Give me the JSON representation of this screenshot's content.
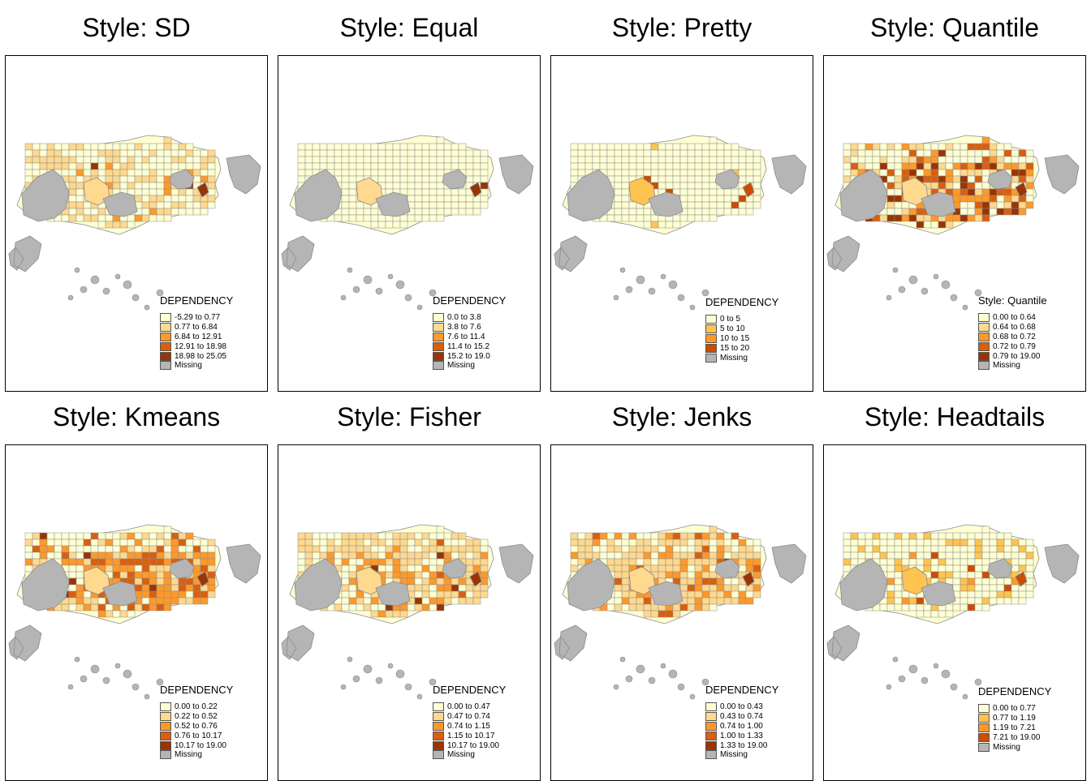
{
  "colors": {
    "missing": "#b5b5b5",
    "boundary": "#8c8c8c",
    "scale5": [
      "#ffffd4",
      "#fed98e",
      "#fe9929",
      "#d95f0e",
      "#993404"
    ],
    "scale4": [
      "#ffffd4",
      "#fec44f",
      "#fe9929",
      "#cc4c02"
    ]
  },
  "panels": [
    {
      "title": "Style: SD",
      "legend_title": "DEPENDENCY",
      "classes": [
        "-5.29 to 0.77",
        "0.77 to 6.84",
        "6.84 to 12.91",
        "12.91 to 18.98",
        "18.98 to 25.05"
      ],
      "missing_label": "Missing",
      "fill_mix": [
        0.5,
        0.42,
        0.06,
        0.0,
        0.02
      ]
    },
    {
      "title": "Style: Equal",
      "legend_title": "DEPENDENCY",
      "classes": [
        "0.0 to 3.8",
        "3.8 to 7.6",
        "7.6 to 11.4",
        "11.4 to 15.2",
        "15.2 to 19.0"
      ],
      "missing_label": "Missing",
      "fill_mix": [
        0.97,
        0.01,
        0.0,
        0.0,
        0.02
      ]
    },
    {
      "title": "Style: Pretty",
      "legend_title": "DEPENDENCY",
      "classes": [
        "0 to 5",
        "5 to 10",
        "10 to 15",
        "15 to 20"
      ],
      "missing_label": "Missing",
      "fill_mix": [
        0.97,
        0.01,
        0.0,
        0.02
      ]
    },
    {
      "title": "Style: Quantile",
      "legend_title": "Style: Quantile",
      "classes": [
        "0.00 to 0.64",
        "0.64 to 0.68",
        "0.68 to 0.72",
        "0.72 to 0.79",
        "0.79 to 19.00"
      ],
      "missing_label": "Missing",
      "fill_mix": [
        0.2,
        0.2,
        0.2,
        0.2,
        0.2
      ]
    },
    {
      "title": "Style: Kmeans",
      "legend_title": "DEPENDENCY",
      "classes": [
        "0.00 to 0.22",
        "0.22 to 0.52",
        "0.52 to 0.76",
        "0.76 to 10.17",
        "10.17 to 19.00"
      ],
      "missing_label": "Missing",
      "fill_mix": [
        0.08,
        0.18,
        0.44,
        0.28,
        0.02
      ]
    },
    {
      "title": "Style: Fisher",
      "legend_title": "DEPENDENCY",
      "classes": [
        "0.00 to 0.47",
        "0.47 to 0.74",
        "0.74 to 1.15",
        "1.15 to 10.17",
        "10.17 to 19.00"
      ],
      "missing_label": "Missing",
      "fill_mix": [
        0.2,
        0.45,
        0.3,
        0.03,
        0.02
      ]
    },
    {
      "title": "Style: Jenks",
      "legend_title": "DEPENDENCY",
      "classes": [
        "0.00 to 0.43",
        "0.43 to 0.74",
        "0.74 to 1.00",
        "1.00 to 1.33",
        "1.33 to 19.00"
      ],
      "missing_label": "Missing",
      "fill_mix": [
        0.15,
        0.45,
        0.3,
        0.08,
        0.02
      ]
    },
    {
      "title": "Style: Headtails",
      "legend_title": "DEPENDENCY",
      "classes": [
        "0.00 to 0.77",
        "0.77 to 1.19",
        "1.19 to 7.21",
        "7.21 to 19.00"
      ],
      "missing_label": "Missing",
      "fill_mix": [
        0.7,
        0.25,
        0.03,
        0.02
      ]
    }
  ]
}
